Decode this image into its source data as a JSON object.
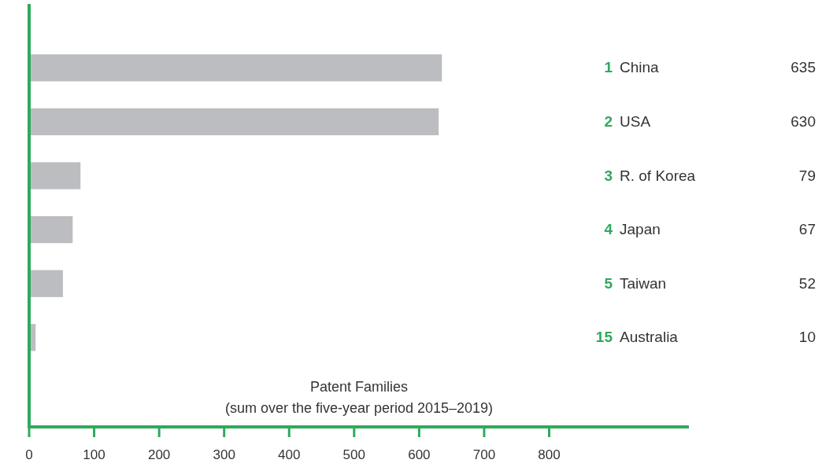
{
  "chart_data": {
    "type": "bar",
    "orientation": "horizontal",
    "categories": [
      "1 China",
      "2 USA",
      "3 R. of Korea",
      "4 Japan",
      "5 Taiwan",
      "15 Australia"
    ],
    "values": [
      635,
      630,
      79,
      67,
      52,
      10
    ],
    "color": "#bcbdc0",
    "data_labels": true,
    "xlabel": "Patent Families\n(sum over the five-year period 2015–2019)",
    "xlim": [
      0,
      1015
    ],
    "xticks": [
      0,
      100,
      200,
      300,
      400,
      500,
      600,
      700,
      800
    ]
  }
}
